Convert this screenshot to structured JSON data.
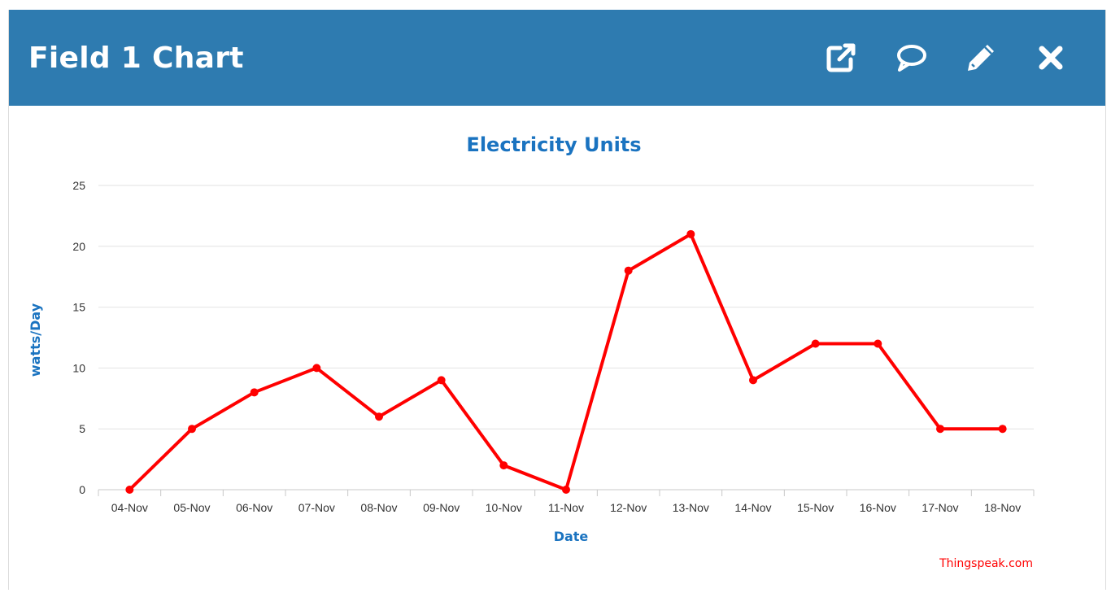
{
  "header": {
    "title": "Field 1 Chart",
    "background_color": "#2e7bb0",
    "actions": [
      {
        "name": "open-external-icon"
      },
      {
        "name": "comment-icon"
      },
      {
        "name": "edit-pencil-icon"
      },
      {
        "name": "close-icon"
      }
    ]
  },
  "chart_data": {
    "type": "line",
    "title": "Electricity Units",
    "xlabel": "Date",
    "ylabel": "watts/Day",
    "categories": [
      "04-Nov",
      "05-Nov",
      "06-Nov",
      "07-Nov",
      "08-Nov",
      "09-Nov",
      "10-Nov",
      "11-Nov",
      "12-Nov",
      "13-Nov",
      "14-Nov",
      "15-Nov",
      "16-Nov",
      "17-Nov",
      "18-Nov"
    ],
    "series": [
      {
        "values": [
          0,
          5,
          8,
          10,
          6,
          9,
          2,
          0,
          18,
          21,
          9,
          12,
          12,
          5,
          5
        ],
        "color": "#ff0000"
      }
    ],
    "ylim": [
      0,
      25
    ],
    "yticks": [
      0,
      5,
      10,
      15,
      20,
      25
    ],
    "grid": true,
    "legend": "none",
    "title_color": "#1a73c0",
    "axis_label_color": "#1a73c0"
  },
  "credit": {
    "text": "Thingspeak.com",
    "color": "#ff0000"
  }
}
